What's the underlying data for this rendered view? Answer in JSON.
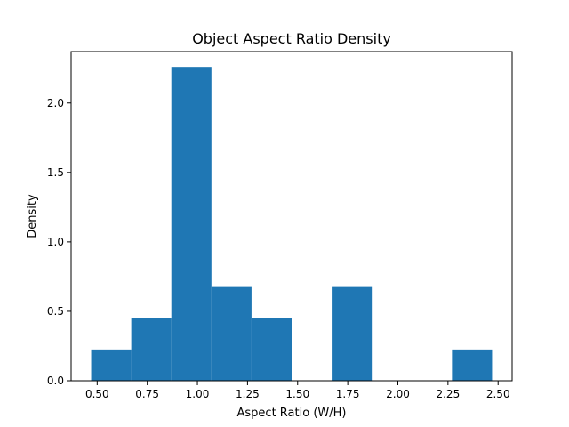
{
  "chart_data": {
    "type": "bar",
    "title": "Object Aspect Ratio Density",
    "xlabel": "Aspect Ratio (W/H)",
    "ylabel": "Density",
    "xlim": [
      0.37,
      2.57
    ],
    "ylim": [
      0,
      2.37
    ],
    "x_ticks": [
      0.5,
      0.75,
      1.0,
      1.25,
      1.5,
      1.75,
      2.0,
      2.25,
      2.5
    ],
    "x_tick_labels": [
      "0.50",
      "0.75",
      "1.00",
      "1.25",
      "1.50",
      "1.75",
      "2.00",
      "2.25",
      "2.50"
    ],
    "y_ticks": [
      0.0,
      0.5,
      1.0,
      1.5,
      2.0
    ],
    "y_tick_labels": [
      "0.0",
      "0.5",
      "1.0",
      "1.5",
      "2.0"
    ],
    "bins": [
      {
        "start": 0.47,
        "end": 0.67,
        "value": 0.225
      },
      {
        "start": 0.67,
        "end": 0.87,
        "value": 0.45
      },
      {
        "start": 0.87,
        "end": 1.07,
        "value": 2.26
      },
      {
        "start": 1.07,
        "end": 1.27,
        "value": 0.675
      },
      {
        "start": 1.27,
        "end": 1.47,
        "value": 0.45
      },
      {
        "start": 1.47,
        "end": 1.67,
        "value": 0.0
      },
      {
        "start": 1.67,
        "end": 1.87,
        "value": 0.675
      },
      {
        "start": 1.87,
        "end": 2.07,
        "value": 0.0
      },
      {
        "start": 2.07,
        "end": 2.27,
        "value": 0.0
      },
      {
        "start": 2.27,
        "end": 2.47,
        "value": 0.225
      }
    ],
    "bar_color": "#1f77b4",
    "grid": false,
    "legend": "none"
  }
}
